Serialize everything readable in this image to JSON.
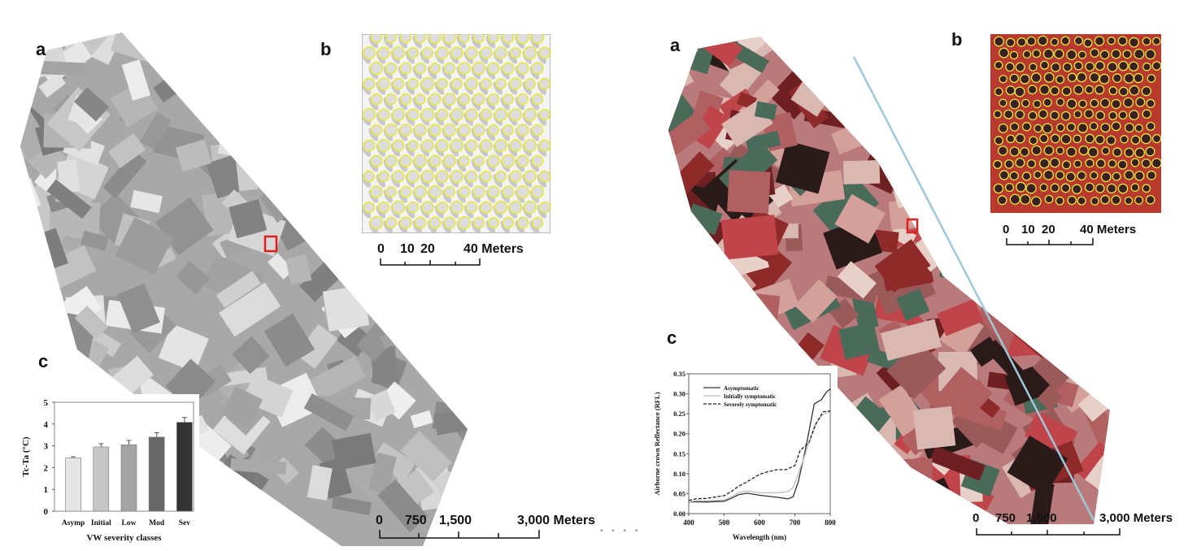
{
  "panel_labels": {
    "left_a": "a",
    "left_b": "b",
    "left_c": "c",
    "right_a": "a",
    "right_b": "b",
    "right_c": "c"
  },
  "scale_bars": {
    "left_map": {
      "ticks": [
        "0",
        "750",
        "1,500",
        "3,000 Meters"
      ]
    },
    "left_inset": {
      "ticks": [
        "0",
        "10",
        "20",
        "40 Meters"
      ]
    },
    "right_map": {
      "ticks": [
        "0",
        "750",
        "1,500",
        "3,000 Meters"
      ]
    },
    "right_inset": {
      "ticks": [
        "0",
        "10",
        "20",
        "40 Meters"
      ]
    }
  },
  "page_indicator": "• • • •",
  "colors": {
    "highlight_box": "#e02020",
    "crown_outline": "#e8e840",
    "inset_red": "#b8392e"
  },
  "chart_data": [
    {
      "type": "bar",
      "categories": [
        "Asymp",
        "Initial",
        "Low",
        "Mod",
        "Sev"
      ],
      "values": [
        2.45,
        2.95,
        3.05,
        3.4,
        4.08
      ],
      "errors": [
        0.05,
        0.15,
        0.2,
        0.2,
        0.22
      ],
      "bar_colors": [
        "#e6e6e6",
        "#c6c6c6",
        "#a4a4a4",
        "#676767",
        "#333333"
      ],
      "xlabel": "VW severity classes",
      "ylabel": "Tc-Ta (°C)",
      "ylim": [
        0,
        5
      ],
      "yticks": [
        "0",
        "1",
        "2",
        "3",
        "4",
        "5"
      ]
    },
    {
      "type": "line",
      "xlabel": "Wavelength (nm)",
      "ylabel": "Airborne crown Reflectance (RFL)",
      "xlim": [
        400,
        800
      ],
      "ylim": [
        0,
        0.35
      ],
      "xticks": [
        "400",
        "500",
        "600",
        "700",
        "800"
      ],
      "yticks": [
        "0.00",
        "0.05",
        "0.10",
        "0.15",
        "0.20",
        "0.25",
        "0.30",
        "0.35"
      ],
      "legend": "top-left",
      "series": [
        {
          "name": "Asymptomatic",
          "style": "solid",
          "color": "#333333",
          "x": [
            400,
            420,
            450,
            500,
            520,
            540,
            565,
            600,
            650,
            680,
            695,
            710,
            730,
            755,
            775,
            790,
            800
          ],
          "y": [
            0.029,
            0.03,
            0.029,
            0.031,
            0.038,
            0.047,
            0.051,
            0.046,
            0.041,
            0.037,
            0.042,
            0.08,
            0.16,
            0.275,
            0.285,
            0.305,
            0.312
          ]
        },
        {
          "name": "Initially symptomatic",
          "style": "solid",
          "color": "#bbbbbb",
          "x": [
            400,
            420,
            450,
            500,
            520,
            540,
            565,
            600,
            650,
            680,
            695,
            710,
            730,
            755,
            775,
            790,
            800
          ],
          "y": [
            0.03,
            0.032,
            0.032,
            0.034,
            0.042,
            0.052,
            0.057,
            0.052,
            0.052,
            0.055,
            0.065,
            0.1,
            0.15,
            0.22,
            0.245,
            0.253,
            0.255
          ]
        },
        {
          "name": "Severely symptomatic",
          "style": "dashed",
          "color": "#222222",
          "x": [
            400,
            420,
            450,
            500,
            520,
            540,
            565,
            600,
            620,
            650,
            675,
            700,
            715,
            740,
            760,
            780,
            800
          ],
          "y": [
            0.033,
            0.037,
            0.038,
            0.045,
            0.055,
            0.068,
            0.08,
            0.098,
            0.104,
            0.11,
            0.11,
            0.12,
            0.158,
            0.178,
            0.225,
            0.255,
            0.257
          ]
        }
      ]
    }
  ]
}
